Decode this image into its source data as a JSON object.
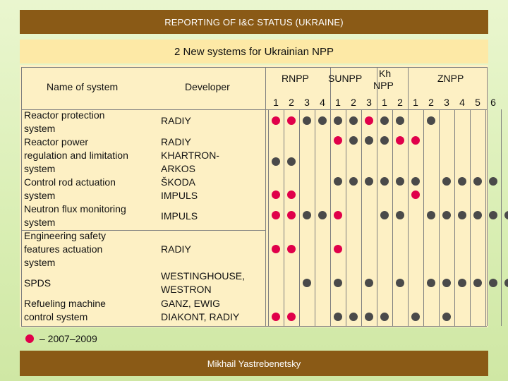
{
  "header": {
    "title": "REPORTING OF I&C STATUS (UKRAINE)"
  },
  "slide_title": "2 New systems for Ukrainian NPP",
  "columns": {
    "name": "Name of system",
    "developer": "Developer",
    "plants": [
      {
        "label": "RNPP",
        "units": [
          "1",
          "2",
          "3",
          "4"
        ]
      },
      {
        "label": "SUNPP",
        "units": [
          "1",
          "2",
          "3"
        ]
      },
      {
        "label_line1": "Kh",
        "label_line2": "NPP",
        "units": [
          "1",
          "2"
        ]
      },
      {
        "label": "ZNPP",
        "units": [
          "1",
          "2",
          "3",
          "4",
          "5",
          "6"
        ]
      }
    ]
  },
  "rows": [
    {
      "name_lines": [
        "Reactor protection",
        "system"
      ],
      "developer_lines": [
        "RADIY"
      ],
      "marks": [
        "new",
        "new",
        "old",
        "old",
        "old",
        "old",
        "new",
        "old",
        "old",
        "",
        "old",
        "",
        "",
        "",
        "",
        ""
      ]
    },
    {
      "name_lines": [
        "Reactor power",
        "regulation and limitation",
        "system"
      ],
      "developer_lines": [
        "RADIY",
        "KHARTRON-",
        "ARKOS"
      ],
      "marks": [
        "old",
        "old",
        "",
        "",
        "",
        "",
        "",
        "",
        "",
        "",
        "",
        "",
        "",
        "",
        "",
        ""
      ],
      "marks_top": [
        "",
        "",
        "",
        "",
        "new",
        "old",
        "old",
        "old",
        "new",
        "new",
        "",
        "",
        "",
        "",
        "",
        ""
      ]
    },
    {
      "name_lines": [
        "Control rod actuation",
        "system"
      ],
      "developer_lines": [
        "ŠKODA",
        "IMPULS"
      ],
      "marks": [
        "new",
        "new",
        "",
        "",
        "",
        "",
        "",
        "",
        "",
        "new",
        "",
        "",
        "",
        "",
        "",
        ""
      ],
      "marks_top": [
        "",
        "",
        "",
        "",
        "old",
        "old",
        "old",
        "old",
        "old",
        "old",
        "",
        "old",
        "old",
        "old",
        "old",
        ""
      ]
    },
    {
      "name_lines": [
        "Neutron flux monitoring",
        "system"
      ],
      "developer_lines": [
        "IMPULS"
      ],
      "marks": [
        "new",
        "new",
        "old",
        "old",
        "new",
        "",
        "",
        "old",
        "old",
        "",
        "old",
        "old",
        "old",
        "old",
        "old",
        "old"
      ]
    },
    {
      "name_lines": [
        "Engineering safety",
        "features actuation",
        "system"
      ],
      "developer_lines": [
        "RADIY"
      ],
      "marks": [
        "new",
        "new",
        "",
        "",
        "new",
        "",
        "",
        "",
        "",
        "",
        "",
        "",
        "",
        "",
        "",
        ""
      ]
    },
    {
      "name_lines": [
        "SPDS"
      ],
      "developer_lines": [
        "WESTINGHOUSE,",
        "WESTRON"
      ],
      "marks": [
        "",
        "",
        "old",
        "",
        "old",
        "",
        "old",
        "",
        "old",
        "",
        "old",
        "old",
        "old",
        "old",
        "old",
        "old"
      ]
    },
    {
      "name_lines": [
        "Refueling machine",
        "control system"
      ],
      "developer_lines": [
        "GANZ, EWIG",
        "DIAKONT, RADIY"
      ],
      "marks": [
        "new",
        "new",
        "",
        "",
        "old",
        "old",
        "old",
        "old",
        "",
        "old",
        "",
        "old",
        "",
        "",
        "",
        ""
      ]
    }
  ],
  "legend": {
    "text": "– 2007–2009"
  },
  "footer": {
    "author": "Mikhail Yastrebenetsky"
  },
  "colors": {
    "new_mark": "#e0004a",
    "existing_mark": "#4a4a4a",
    "bar": "#8a5a16",
    "title_bg": "#fde9a6"
  }
}
